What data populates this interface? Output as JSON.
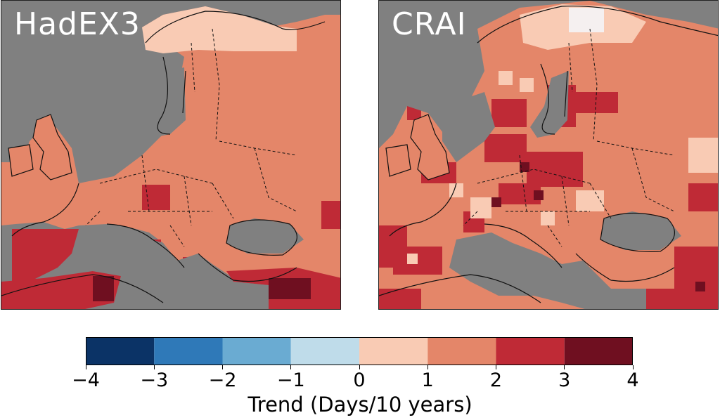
{
  "panels": [
    {
      "title": "HadEX3",
      "land_color": "#e07b62"
    },
    {
      "title": "CRAI",
      "land_color": "#e07b62"
    }
  ],
  "colorbar": {
    "label": "Trend (Days/10 years)",
    "ticks": [
      "−4",
      "−3",
      "−2",
      "−1",
      "0",
      "1",
      "2",
      "3",
      "4"
    ],
    "colors": [
      "#0b3366",
      "#2f79b8",
      "#6aabd2",
      "#bfdcea",
      "#f9cbb4",
      "#e48669",
      "#bf2a36",
      "#6f0f20"
    ]
  },
  "colors": {
    "missing": "#808080",
    "strong_positive": "#bf2a36",
    "very_strong_positive": "#6f0f20",
    "weak_positive": "#f9cbb4",
    "near_zero": "#f5f0f0"
  }
}
